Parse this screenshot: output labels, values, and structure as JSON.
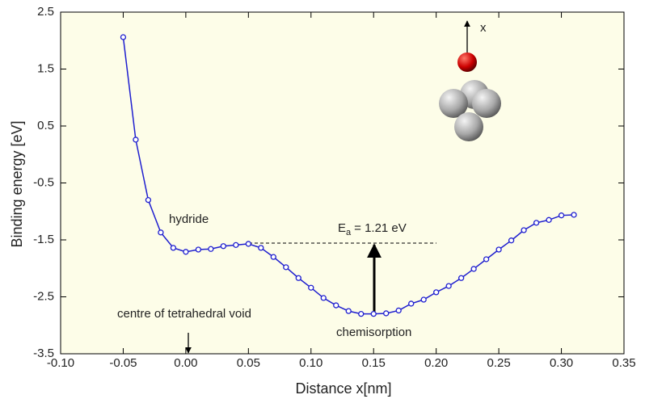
{
  "chart_data": {
    "type": "line",
    "x_label": "Distance x[nm]",
    "y_label": "Binding energy [eV]",
    "x": [
      -0.05,
      -0.04,
      -0.03,
      -0.02,
      -0.01,
      0.0,
      0.01,
      0.02,
      0.03,
      0.04,
      0.05,
      0.06,
      0.07,
      0.08,
      0.09,
      0.1,
      0.11,
      0.12,
      0.13,
      0.14,
      0.15,
      0.16,
      0.17,
      0.18,
      0.19,
      0.2,
      0.21,
      0.22,
      0.23,
      0.24,
      0.25,
      0.26,
      0.27,
      0.28,
      0.29,
      0.3,
      0.31
    ],
    "series": [
      {
        "color": "#1f1fcf",
        "values": [
          2.06,
          0.26,
          -0.8,
          -1.37,
          -1.64,
          -1.71,
          -1.67,
          -1.66,
          -1.61,
          -1.59,
          -1.57,
          -1.64,
          -1.8,
          -1.98,
          -2.17,
          -2.34,
          -2.52,
          -2.65,
          -2.75,
          -2.8,
          -2.8,
          -2.79,
          -2.74,
          -2.62,
          -2.55,
          -2.42,
          -2.31,
          -2.17,
          -2.01,
          -1.84,
          -1.67,
          -1.51,
          -1.33,
          -1.2,
          -1.15,
          -1.07,
          -1.06
        ]
      }
    ],
    "xlim": [
      -0.1,
      0.35
    ],
    "xticks": [
      {
        "value": -0.1,
        "label": "-0.10"
      },
      -0.05,
      {
        "value": 0,
        "label": "0.00"
      },
      0.05,
      {
        "value": 0.1,
        "label": "0.10"
      },
      0.15,
      {
        "value": 0.2,
        "label": "0.20"
      },
      0.25,
      {
        "value": 0.3,
        "label": "0.30"
      },
      0.35
    ],
    "ylim": [
      -3.5,
      2.5
    ],
    "yticks": [
      -3.5,
      -2.5,
      -1.5,
      -0.5,
      0.5,
      1.5,
      2.5
    ],
    "annotations": [
      "hydride",
      "E",
      "a",
      "= 1.21 eV",
      "centre of tetrahedral void",
      "chemisorption",
      "x"
    ]
  }
}
